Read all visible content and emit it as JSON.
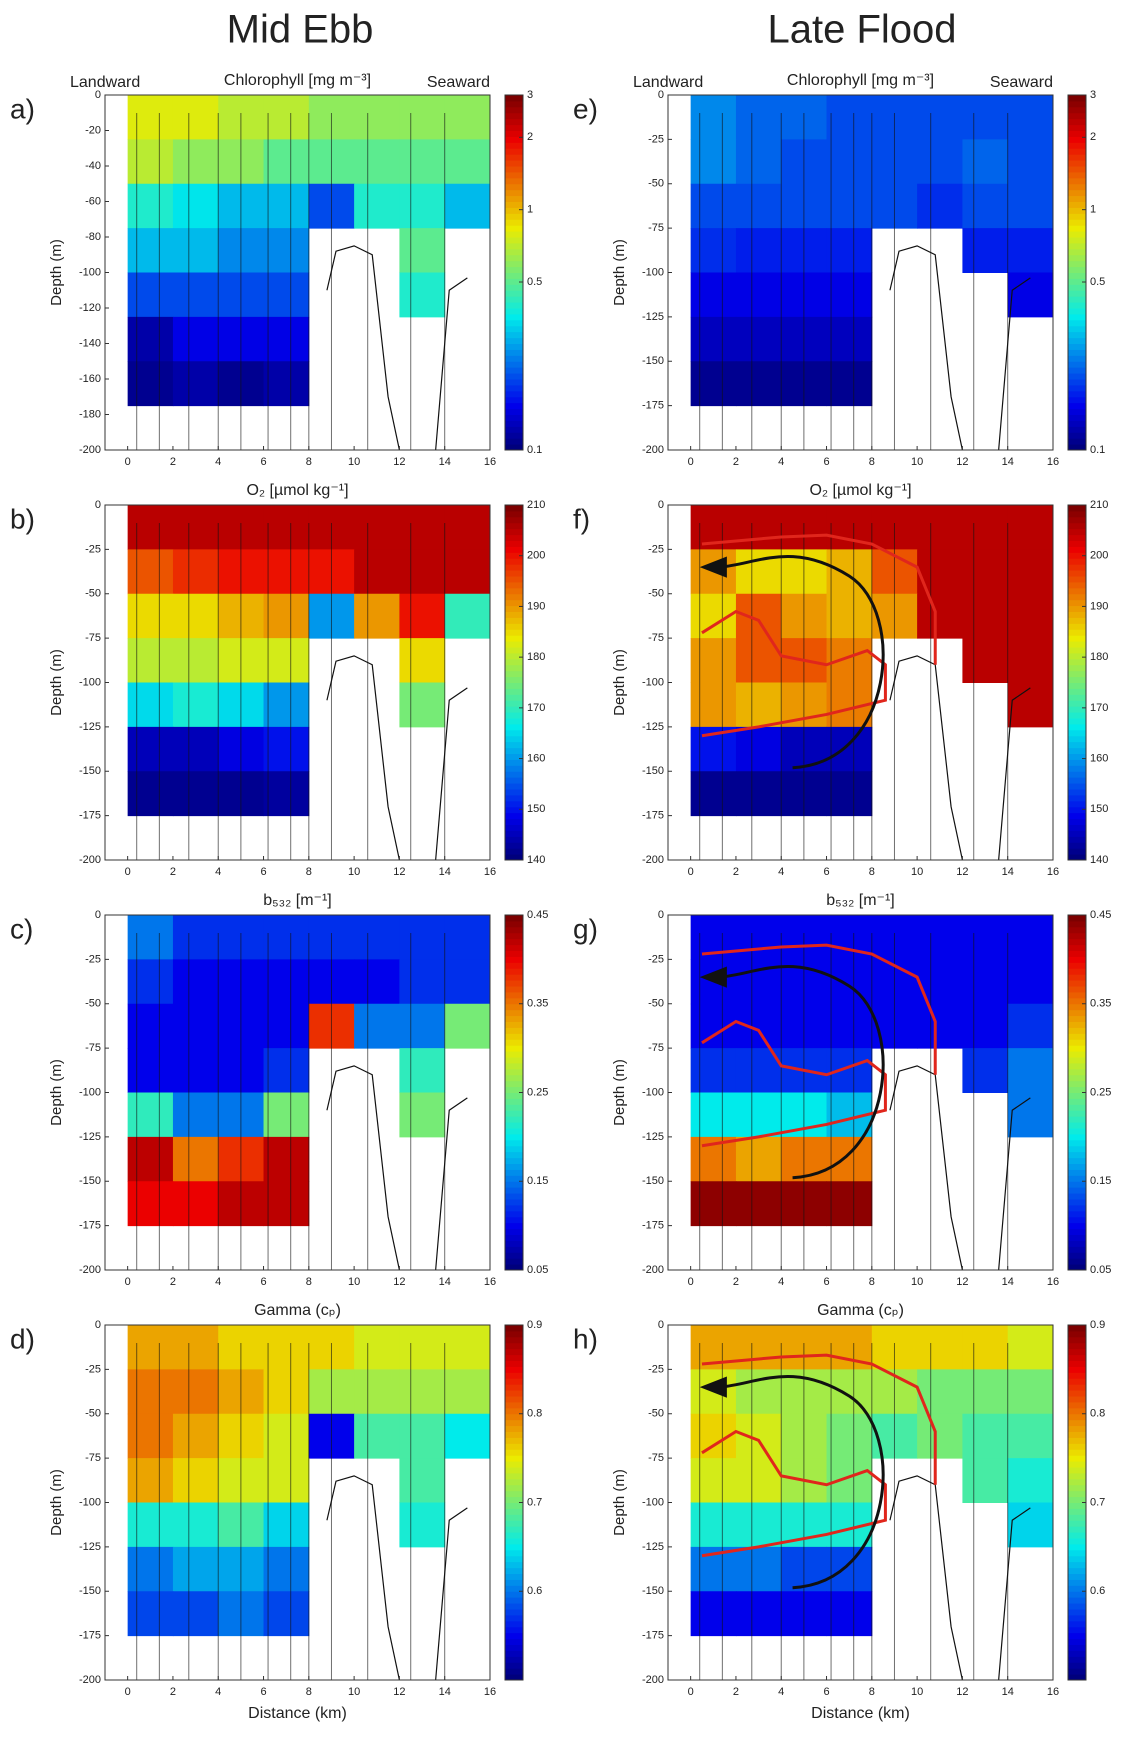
{
  "column_titles": [
    "Mid Ebb",
    "Late Flood"
  ],
  "chart_data": [
    {
      "type": "heatmap",
      "panel": "a)",
      "title": "Chlorophyll [mg m⁻³]",
      "annotations": [
        "Landward",
        "Seaward"
      ],
      "ylabel": "Depth (m)",
      "colormap": "jet",
      "zscale": "log",
      "zlim": [
        0.1,
        3
      ],
      "zticks": [
        0.1,
        0.5,
        1,
        2,
        3
      ],
      "xlim": [
        -1,
        16
      ],
      "xticks": [
        0,
        2,
        4,
        6,
        8,
        10,
        12,
        14,
        16
      ],
      "ylim": [
        -200,
        0
      ],
      "yticks": [
        0,
        -20,
        -40,
        -60,
        -80,
        -100,
        -120,
        -140,
        -160,
        -180,
        -200
      ],
      "x": [
        1,
        3,
        5,
        7,
        9,
        11,
        13,
        15
      ],
      "y": [
        -12.5,
        -37.5,
        -62.5,
        -87.5,
        -112.5,
        -137.5,
        -162.5
      ],
      "z": [
        [
          0.8,
          0.8,
          0.7,
          0.7,
          0.6,
          0.6,
          0.6,
          0.6
        ],
        [
          0.7,
          0.6,
          0.6,
          0.5,
          0.5,
          0.5,
          0.5,
          0.5
        ],
        [
          0.4,
          0.35,
          0.3,
          0.3,
          0.2,
          0.4,
          0.4,
          0.3
        ],
        [
          0.3,
          0.3,
          0.25,
          0.25,
          null,
          null,
          0.5,
          null
        ],
        [
          0.2,
          0.2,
          0.2,
          0.2,
          null,
          null,
          0.4,
          null
        ],
        [
          0.12,
          0.15,
          0.15,
          0.15,
          null,
          null,
          null,
          null
        ],
        [
          0.11,
          0.12,
          0.11,
          0.12,
          null,
          null,
          null,
          null
        ]
      ]
    },
    {
      "type": "heatmap",
      "panel": "b)",
      "title": "O₂ [µmol kg⁻¹]",
      "ylabel": "Depth (m)",
      "colormap": "jet",
      "zscale": "linear",
      "zlim": [
        140,
        210
      ],
      "zticks": [
        140,
        150,
        160,
        170,
        180,
        190,
        200,
        210
      ],
      "xlim": [
        -1,
        16
      ],
      "xticks": [
        0,
        2,
        4,
        6,
        8,
        10,
        12,
        14,
        16
      ],
      "ylim": [
        -200,
        0
      ],
      "yticks": [
        0,
        -25,
        -50,
        -75,
        -100,
        -125,
        -150,
        -175,
        -200
      ],
      "x": [
        1,
        3,
        5,
        7,
        9,
        11,
        13,
        15
      ],
      "y": [
        -12.5,
        -37.5,
        -62.5,
        -87.5,
        -112.5,
        -137.5,
        -162.5
      ],
      "z": [
        [
          205,
          205,
          205,
          205,
          205,
          205,
          205,
          205
        ],
        [
          195,
          198,
          200,
          200,
          200,
          205,
          205,
          205
        ],
        [
          185,
          185,
          188,
          190,
          160,
          190,
          200,
          170
        ],
        [
          180,
          180,
          182,
          182,
          null,
          null,
          185,
          null
        ],
        [
          165,
          168,
          165,
          160,
          null,
          null,
          175,
          null
        ],
        [
          145,
          145,
          148,
          150,
          null,
          null,
          null,
          null
        ],
        [
          142,
          142,
          142,
          143,
          null,
          null,
          null,
          null
        ]
      ]
    },
    {
      "type": "heatmap",
      "panel": "c)",
      "title": "b₅₃₂ [m⁻¹]",
      "ylabel": "Depth (m)",
      "colormap": "jet",
      "zscale": "linear",
      "zlim": [
        0.05,
        0.45
      ],
      "zticks": [
        0.05,
        0.15,
        0.25,
        0.35,
        0.45
      ],
      "xlim": [
        -1,
        16
      ],
      "xticks": [
        0,
        2,
        4,
        6,
        8,
        10,
        12,
        14,
        16
      ],
      "ylim": [
        -200,
        0
      ],
      "yticks": [
        0,
        -25,
        -50,
        -75,
        -100,
        -125,
        -150,
        -175,
        -200
      ],
      "x": [
        1,
        3,
        5,
        7,
        9,
        11,
        13,
        15
      ],
      "y": [
        -12.5,
        -37.5,
        -62.5,
        -87.5,
        -112.5,
        -137.5,
        -162.5
      ],
      "z": [
        [
          0.15,
          0.12,
          0.12,
          0.12,
          0.12,
          0.12,
          0.12,
          0.12
        ],
        [
          0.12,
          0.1,
          0.1,
          0.1,
          0.1,
          0.1,
          0.12,
          0.12
        ],
        [
          0.1,
          0.1,
          0.1,
          0.1,
          0.38,
          0.15,
          0.15,
          0.25
        ],
        [
          0.1,
          0.1,
          0.1,
          0.12,
          null,
          null,
          0.22,
          null
        ],
        [
          0.22,
          0.15,
          0.15,
          0.25,
          null,
          null,
          0.25,
          null
        ],
        [
          0.42,
          0.35,
          0.38,
          0.42,
          null,
          null,
          null,
          null
        ],
        [
          0.4,
          0.4,
          0.42,
          0.42,
          null,
          null,
          null,
          null
        ]
      ]
    },
    {
      "type": "heatmap",
      "panel": "d)",
      "title": "Gamma (cₚ)",
      "ylabel": "Depth (m)",
      "xlabel": "Distance (km)",
      "colormap": "jet",
      "zscale": "linear",
      "zlim": [
        0.5,
        0.9
      ],
      "zticks": [
        0.6,
        0.7,
        0.8,
        0.9
      ],
      "xlim": [
        -1,
        16
      ],
      "xticks": [
        0,
        2,
        4,
        6,
        8,
        10,
        12,
        14,
        16
      ],
      "ylim": [
        -200,
        0
      ],
      "yticks": [
        0,
        -25,
        -50,
        -75,
        -100,
        -125,
        -150,
        -175,
        -200
      ],
      "x": [
        1,
        3,
        5,
        7,
        9,
        11,
        13,
        15
      ],
      "y": [
        -12.5,
        -37.5,
        -62.5,
        -87.5,
        -112.5,
        -137.5,
        -162.5
      ],
      "z": [
        [
          0.78,
          0.78,
          0.76,
          0.76,
          0.76,
          0.74,
          0.74,
          0.74
        ],
        [
          0.8,
          0.8,
          0.78,
          0.76,
          0.72,
          0.72,
          0.72,
          0.72
        ],
        [
          0.8,
          0.78,
          0.76,
          0.74,
          0.55,
          0.68,
          0.68,
          0.65
        ],
        [
          0.78,
          0.76,
          0.74,
          0.74,
          null,
          null,
          0.68,
          null
        ],
        [
          0.66,
          0.66,
          0.68,
          0.64,
          null,
          null,
          0.66,
          null
        ],
        [
          0.6,
          0.62,
          0.62,
          0.6,
          null,
          null,
          null,
          null
        ],
        [
          0.58,
          0.58,
          0.6,
          0.58,
          null,
          null,
          null,
          null
        ]
      ]
    },
    {
      "type": "heatmap",
      "panel": "e)",
      "title": "Chlorophyll [mg m⁻³]",
      "annotations": [
        "Landward",
        "Seaward"
      ],
      "ylabel": "Depth (m)",
      "colormap": "jet",
      "zscale": "log",
      "zlim": [
        0.1,
        3
      ],
      "zticks": [
        0.1,
        0.5,
        1,
        2,
        3
      ],
      "xlim": [
        -1,
        16
      ],
      "xticks": [
        0,
        2,
        4,
        6,
        8,
        10,
        12,
        14,
        16
      ],
      "ylim": [
        -200,
        0
      ],
      "yticks": [
        0,
        -25,
        -50,
        -75,
        -100,
        -125,
        -150,
        -175,
        -200
      ],
      "x": [
        1,
        3,
        5,
        7,
        9,
        11,
        13,
        15
      ],
      "y": [
        -12.5,
        -37.5,
        -62.5,
        -87.5,
        -112.5,
        -137.5,
        -162.5
      ],
      "z": [
        [
          0.25,
          0.22,
          0.22,
          0.2,
          0.2,
          0.2,
          0.2,
          0.2
        ],
        [
          0.25,
          0.22,
          0.2,
          0.2,
          0.2,
          0.2,
          0.22,
          0.2
        ],
        [
          0.2,
          0.2,
          0.2,
          0.2,
          0.2,
          0.18,
          0.2,
          0.2
        ],
        [
          0.18,
          0.17,
          0.17,
          0.17,
          null,
          null,
          0.17,
          0.17
        ],
        [
          0.15,
          0.15,
          0.15,
          0.15,
          null,
          null,
          null,
          0.15
        ],
        [
          0.13,
          0.13,
          0.13,
          0.13,
          null,
          null,
          null,
          null
        ],
        [
          0.11,
          0.11,
          0.11,
          0.11,
          null,
          null,
          null,
          null
        ]
      ]
    },
    {
      "type": "heatmap",
      "panel": "f)",
      "title": "O₂ [µmol kg⁻¹]",
      "ylabel": "Depth (m)",
      "flow_arrow": true,
      "colormap": "jet",
      "zscale": "linear",
      "zlim": [
        140,
        210
      ],
      "zticks": [
        140,
        150,
        160,
        170,
        180,
        190,
        200,
        210
      ],
      "xlim": [
        -1,
        16
      ],
      "xticks": [
        0,
        2,
        4,
        6,
        8,
        10,
        12,
        14,
        16
      ],
      "ylim": [
        -200,
        0
      ],
      "yticks": [
        0,
        -25,
        -50,
        -75,
        -100,
        -125,
        -150,
        -175,
        -200
      ],
      "x": [
        1,
        3,
        5,
        7,
        9,
        11,
        13,
        15
      ],
      "y": [
        -12.5,
        -37.5,
        -62.5,
        -87.5,
        -112.5,
        -137.5,
        -162.5
      ],
      "z": [
        [
          205,
          205,
          205,
          205,
          205,
          205,
          205,
          205
        ],
        [
          190,
          185,
          185,
          188,
          195,
          205,
          205,
          205
        ],
        [
          185,
          195,
          190,
          188,
          190,
          205,
          205,
          205
        ],
        [
          190,
          195,
          195,
          192,
          null,
          null,
          205,
          205
        ],
        [
          190,
          188,
          190,
          192,
          null,
          null,
          null,
          205
        ],
        [
          150,
          148,
          145,
          145,
          null,
          null,
          null,
          null
        ],
        [
          142,
          142,
          142,
          142,
          null,
          null,
          null,
          null
        ]
      ]
    },
    {
      "type": "heatmap",
      "panel": "g)",
      "title": "b₅₃₂ [m⁻¹]",
      "ylabel": "Depth (m)",
      "flow_arrow": true,
      "colormap": "jet",
      "zscale": "linear",
      "zlim": [
        0.05,
        0.45
      ],
      "zticks": [
        0.05,
        0.15,
        0.25,
        0.35,
        0.45
      ],
      "xlim": [
        -1,
        16
      ],
      "xticks": [
        0,
        2,
        4,
        6,
        8,
        10,
        12,
        14,
        16
      ],
      "ylim": [
        -200,
        0
      ],
      "yticks": [
        0,
        -25,
        -50,
        -75,
        -100,
        -125,
        -150,
        -175,
        -200
      ],
      "x": [
        1,
        3,
        5,
        7,
        9,
        11,
        13,
        15
      ],
      "y": [
        -12.5,
        -37.5,
        -62.5,
        -87.5,
        -112.5,
        -137.5,
        -162.5
      ],
      "z": [
        [
          0.1,
          0.1,
          0.1,
          0.1,
          0.1,
          0.1,
          0.1,
          0.1
        ],
        [
          0.1,
          0.1,
          0.1,
          0.1,
          0.1,
          0.1,
          0.1,
          0.1
        ],
        [
          0.1,
          0.1,
          0.1,
          0.1,
          0.1,
          0.1,
          0.1,
          0.12
        ],
        [
          0.12,
          0.12,
          0.12,
          0.12,
          null,
          null,
          0.12,
          0.15
        ],
        [
          0.2,
          0.2,
          0.2,
          0.18,
          null,
          null,
          null,
          0.15
        ],
        [
          0.35,
          0.33,
          0.35,
          0.35,
          null,
          null,
          null,
          null
        ],
        [
          0.44,
          0.44,
          0.44,
          0.44,
          null,
          null,
          null,
          null
        ]
      ]
    },
    {
      "type": "heatmap",
      "panel": "h)",
      "title": "Gamma (cₚ)",
      "ylabel": "Depth (m)",
      "xlabel": "Distance (km)",
      "flow_arrow": true,
      "colormap": "jet",
      "zscale": "linear",
      "zlim": [
        0.5,
        0.9
      ],
      "zticks": [
        0.6,
        0.7,
        0.8,
        0.9
      ],
      "xlim": [
        -1,
        16
      ],
      "xticks": [
        0,
        2,
        4,
        6,
        8,
        10,
        12,
        14,
        16
      ],
      "ylim": [
        -200,
        0
      ],
      "yticks": [
        0,
        -25,
        -50,
        -75,
        -100,
        -125,
        -150,
        -175,
        -200
      ],
      "x": [
        1,
        3,
        5,
        7,
        9,
        11,
        13,
        15
      ],
      "y": [
        -12.5,
        -37.5,
        -62.5,
        -87.5,
        -112.5,
        -137.5,
        -162.5
      ],
      "z": [
        [
          0.78,
          0.78,
          0.78,
          0.78,
          0.76,
          0.76,
          0.76,
          0.74
        ],
        [
          0.74,
          0.72,
          0.72,
          0.72,
          0.72,
          0.7,
          0.7,
          0.7
        ],
        [
          0.76,
          0.74,
          0.72,
          0.7,
          0.68,
          0.7,
          0.68,
          0.68
        ],
        [
          0.74,
          0.74,
          0.72,
          0.7,
          null,
          null,
          0.68,
          0.66
        ],
        [
          0.66,
          0.66,
          0.66,
          0.66,
          null,
          null,
          null,
          0.64
        ],
        [
          0.6,
          0.6,
          0.58,
          0.58,
          null,
          null,
          null,
          null
        ],
        [
          0.55,
          0.55,
          0.55,
          0.55,
          null,
          null,
          null,
          null
        ]
      ]
    }
  ]
}
